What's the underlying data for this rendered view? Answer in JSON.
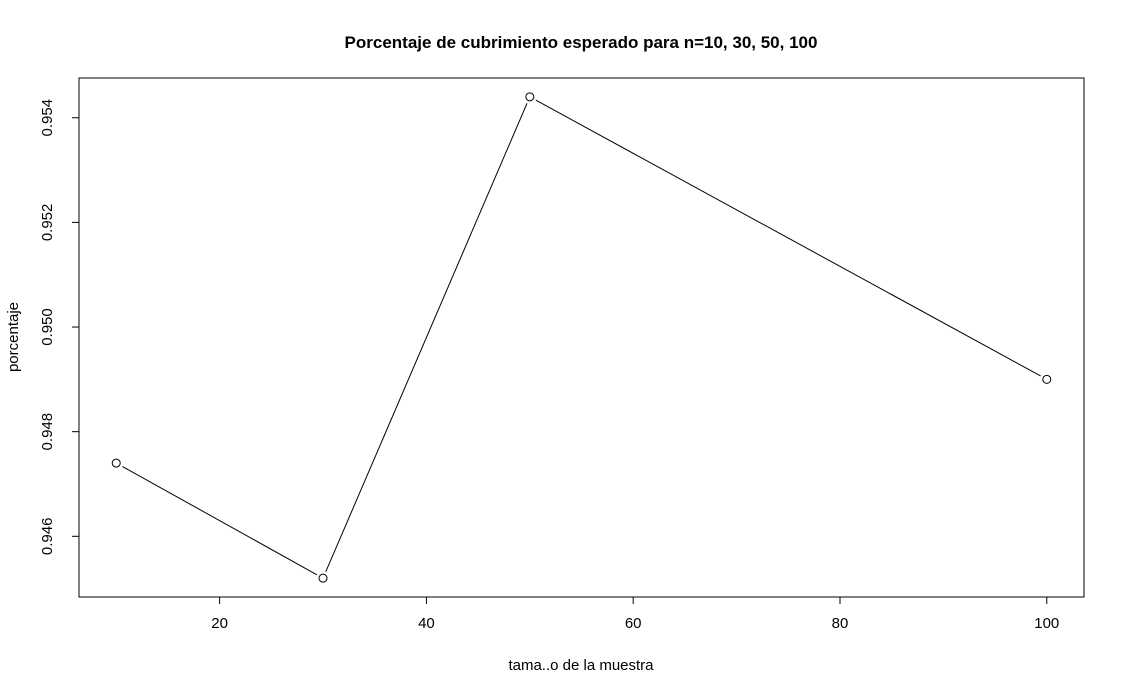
{
  "chart_data": {
    "type": "line",
    "title": "Porcentaje de cubrimiento esperado para n=10, 30, 50, 100",
    "xlabel": "tama..o de la muestra",
    "ylabel": "porcentaje",
    "x": [
      10,
      30,
      50,
      100
    ],
    "series": [
      {
        "values": [
          0.9474,
          0.9452,
          0.9544,
          0.949
        ]
      }
    ],
    "xlim": [
      6.4,
      103.6
    ],
    "ylim": [
      0.94484,
      0.95476
    ],
    "x_ticks": [
      "20",
      "40",
      "60",
      "80",
      "100"
    ],
    "y_ticks": [
      "0.946",
      "0.948",
      "0.950",
      "0.952",
      "0.954"
    ],
    "markers": "open-circle",
    "line_color": "#000000",
    "grid": false,
    "legend": "none"
  }
}
